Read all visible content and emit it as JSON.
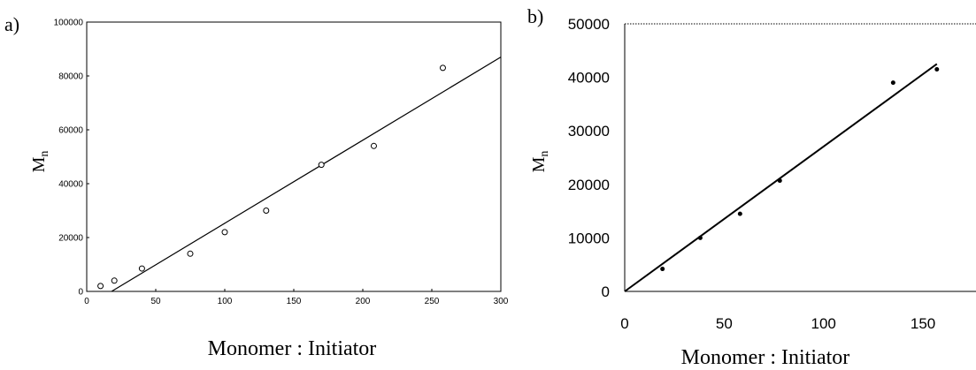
{
  "chart_data": [
    {
      "type": "scatter",
      "panel_label": "a)",
      "xlabel": "Monomer : Initiator",
      "ylabel_main": "M",
      "ylabel_sub": "n",
      "xlim": [
        0,
        300
      ],
      "ylim": [
        0,
        100000
      ],
      "xticks": [
        "0",
        "50",
        "100",
        "150",
        "200",
        "250",
        "300"
      ],
      "yticks": [
        "0",
        "20000",
        "40000",
        "60000",
        "80000",
        "100000"
      ],
      "marker": "open-circle",
      "points": [
        {
          "x": 10,
          "y": 2000
        },
        {
          "x": 20,
          "y": 4000
        },
        {
          "x": 40,
          "y": 8500
        },
        {
          "x": 75,
          "y": 14000
        },
        {
          "x": 100,
          "y": 22000
        },
        {
          "x": 130,
          "y": 30000
        },
        {
          "x": 170,
          "y": 47000
        },
        {
          "x": 208,
          "y": 54000
        },
        {
          "x": 258,
          "y": 83000
        }
      ],
      "fit_line": [
        {
          "x": 18,
          "y": 0
        },
        {
          "x": 300,
          "y": 87000
        }
      ]
    },
    {
      "type": "scatter",
      "panel_label": "b)",
      "xlabel": "Monomer : Initiator",
      "ylabel_main": "M",
      "ylabel_sub": "n",
      "xlim": [
        0,
        170
      ],
      "ylim": [
        0,
        50000
      ],
      "xticks": [
        "0",
        "50",
        "100",
        "150"
      ],
      "yticks": [
        "0",
        "10000",
        "20000",
        "30000",
        "40000",
        "50000"
      ],
      "marker": "filled-dot",
      "points": [
        {
          "x": 19,
          "y": 4200
        },
        {
          "x": 38,
          "y": 10000
        },
        {
          "x": 58,
          "y": 14500
        },
        {
          "x": 78,
          "y": 20700
        },
        {
          "x": 135,
          "y": 39000
        },
        {
          "x": 157,
          "y": 41500
        }
      ],
      "fit_line": [
        {
          "x": 0,
          "y": 0
        },
        {
          "x": 157,
          "y": 42500
        }
      ]
    }
  ]
}
